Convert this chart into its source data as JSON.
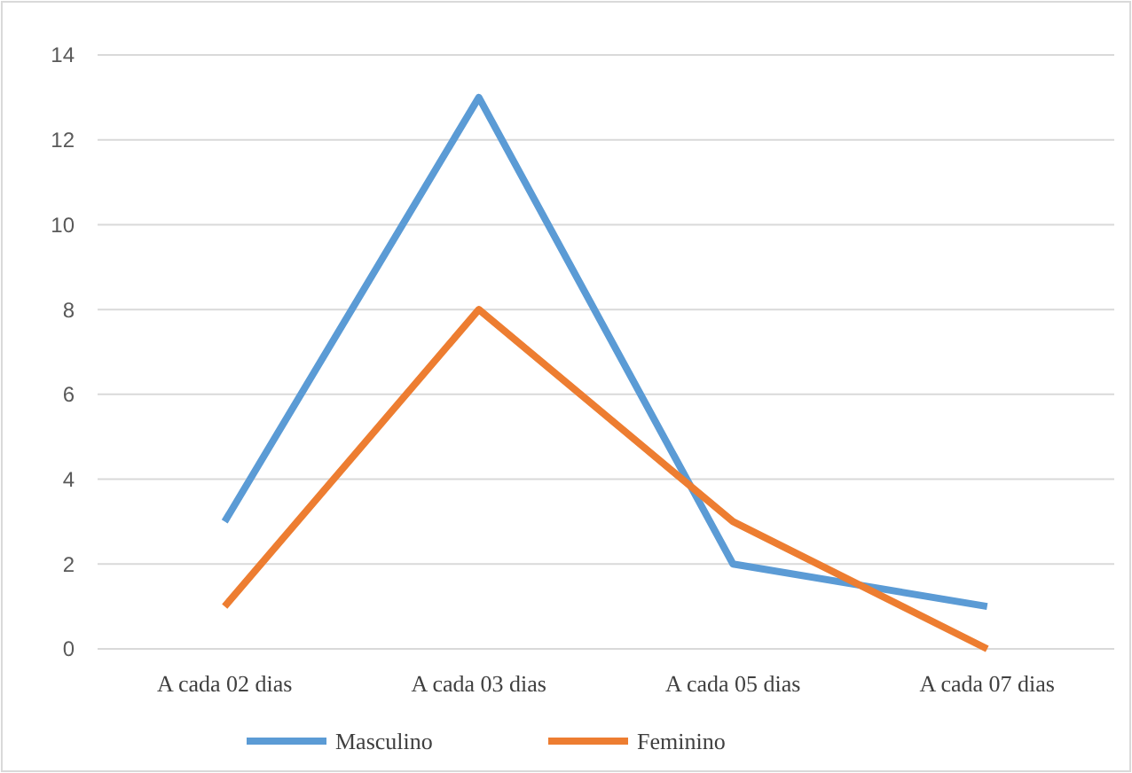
{
  "chart_data": {
    "type": "line",
    "categories": [
      "A cada 02 dias",
      "A cada 03 dias",
      "A cada 05 dias",
      "A cada 07 dias"
    ],
    "series": [
      {
        "name": "Masculino",
        "color": "#5b9bd5",
        "values": [
          3,
          13,
          2,
          1
        ]
      },
      {
        "name": "Feminino",
        "color": "#ed7d31",
        "values": [
          1,
          8,
          3,
          0
        ]
      }
    ],
    "ylim": [
      0,
      14
    ],
    "yticks": [
      0,
      2,
      4,
      6,
      8,
      10,
      12,
      14
    ],
    "grid": "y",
    "legend": "bottom",
    "marker": "none",
    "line_style": "solid"
  }
}
